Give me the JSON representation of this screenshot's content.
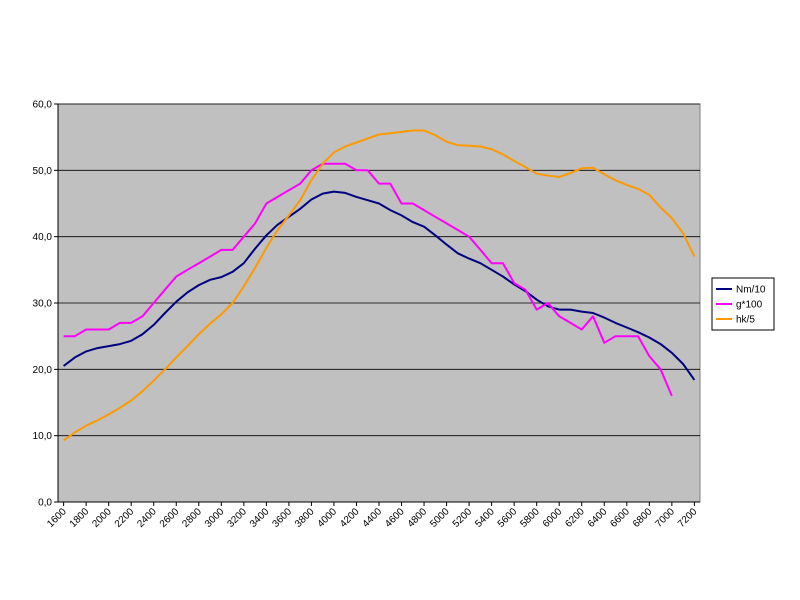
{
  "chart_data": {
    "type": "line",
    "x": [
      1600,
      1700,
      1800,
      1900,
      2000,
      2100,
      2200,
      2300,
      2400,
      2500,
      2600,
      2700,
      2800,
      2900,
      3000,
      3100,
      3200,
      3300,
      3400,
      3500,
      3600,
      3700,
      3800,
      3900,
      4000,
      4100,
      4200,
      4300,
      4400,
      4500,
      4600,
      4700,
      4800,
      4900,
      5000,
      5100,
      5200,
      5300,
      5400,
      5500,
      5600,
      5700,
      5800,
      5900,
      6000,
      6100,
      6200,
      6300,
      6400,
      6500,
      6600,
      6700,
      6800,
      6900,
      7000,
      7100,
      7200
    ],
    "series": [
      {
        "name": "Nm/10",
        "color": "#000080",
        "values": [
          20.5,
          21.8,
          22.7,
          23.2,
          23.5,
          23.8,
          24.3,
          25.3,
          26.7,
          28.5,
          30.2,
          31.6,
          32.7,
          33.5,
          33.9,
          34.7,
          36.0,
          38.2,
          40.2,
          41.8,
          43.0,
          44.2,
          45.6,
          46.5,
          46.8,
          46.6,
          46.0,
          45.5,
          45.0,
          44.0,
          43.2,
          42.2,
          41.5,
          40.2,
          38.8,
          37.5,
          36.7,
          36.0,
          35.0,
          34.0,
          32.8,
          31.8,
          30.5,
          29.5,
          29.0,
          29.0,
          28.7,
          28.5,
          27.8,
          27.0,
          26.3,
          25.6,
          24.8,
          23.8,
          22.5,
          20.8,
          18.4
        ]
      },
      {
        "name": "g*100",
        "color": "#ff00ff",
        "values": [
          25.0,
          25.0,
          26.0,
          26.0,
          26.0,
          27.0,
          27.0,
          28.0,
          30.0,
          32.0,
          34.0,
          35.0,
          36.0,
          37.0,
          38.0,
          38.0,
          40.0,
          42.0,
          45.0,
          46.0,
          47.0,
          48.0,
          50.0,
          51.0,
          51.0,
          51.0,
          50.0,
          50.0,
          48.0,
          48.0,
          45.0,
          45.0,
          44.0,
          43.0,
          42.0,
          41.0,
          40.0,
          38.0,
          36.0,
          36.0,
          33.0,
          32.0,
          29.0,
          30.0,
          28.0,
          27.0,
          26.0,
          28.0,
          24.0,
          25.0,
          25.0,
          25.0,
          22.0,
          20.0,
          16.0,
          null,
          null
        ]
      },
      {
        "name": "hk/5",
        "color": "#ff9900",
        "values": [
          9.3,
          10.5,
          11.5,
          12.3,
          13.2,
          14.2,
          15.3,
          16.7,
          18.3,
          20.0,
          21.8,
          23.5,
          25.3,
          26.9,
          28.3,
          30.0,
          32.5,
          35.3,
          38.3,
          41.0,
          43.2,
          45.5,
          48.5,
          51.0,
          52.7,
          53.6,
          54.2,
          54.8,
          55.4,
          55.6,
          55.8,
          56.0,
          56.0,
          55.3,
          54.3,
          53.8,
          53.7,
          53.6,
          53.2,
          52.4,
          51.4,
          50.5,
          49.5,
          49.2,
          49.0,
          49.6,
          50.3,
          50.4,
          49.4,
          48.5,
          47.8,
          47.2,
          46.3,
          44.4,
          42.8,
          40.5,
          37.0
        ]
      }
    ],
    "xlim": [
      1550,
      7250
    ],
    "xticks": [
      1600,
      1800,
      2000,
      2200,
      2400,
      2600,
      2800,
      3000,
      3200,
      3400,
      3600,
      3800,
      4000,
      4200,
      4400,
      4600,
      4800,
      5000,
      5200,
      5400,
      5600,
      5800,
      6000,
      6200,
      6400,
      6600,
      6800,
      7000,
      7200
    ],
    "ylim": [
      0,
      60
    ],
    "yticks": [
      {
        "value": 0,
        "label": "0,0"
      },
      {
        "value": 10,
        "label": "10,0"
      },
      {
        "value": 20,
        "label": "20,0"
      },
      {
        "value": 30,
        "label": "30,0"
      },
      {
        "value": 40,
        "label": "40,0"
      },
      {
        "value": 50,
        "label": "50,0"
      },
      {
        "value": 60,
        "label": "60,0"
      }
    ],
    "grid": true,
    "legend": "right"
  }
}
